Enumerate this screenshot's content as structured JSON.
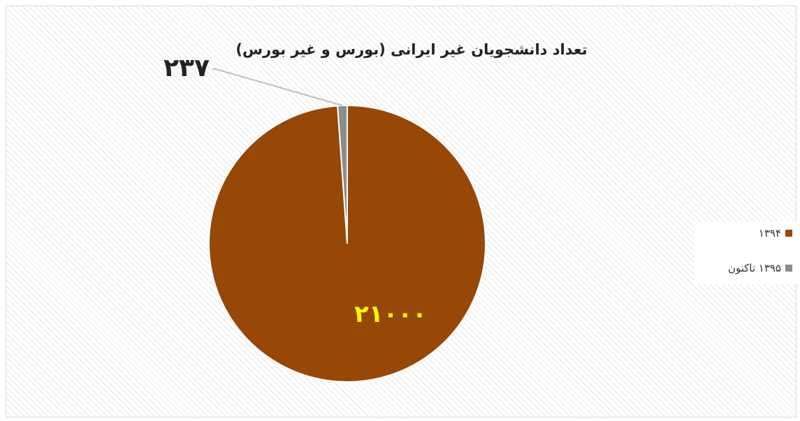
{
  "chart_data": {
    "type": "pie",
    "title": "تعداد دانشجویان غیر ایرانی (بورس و غیر بورس)",
    "slices": [
      {
        "label": "۱۳۹۴",
        "value": 21000,
        "value_label": "۲۱۰۰۰",
        "color": "#974706"
      },
      {
        "label": "۱۳۹۵ تاکنون",
        "value": 237,
        "value_label": "۲۳۷",
        "color": "#8c8c8c"
      }
    ],
    "legend_position": "right",
    "data_label_color_large": "#ffff00",
    "data_label_color_small": "#222222"
  }
}
